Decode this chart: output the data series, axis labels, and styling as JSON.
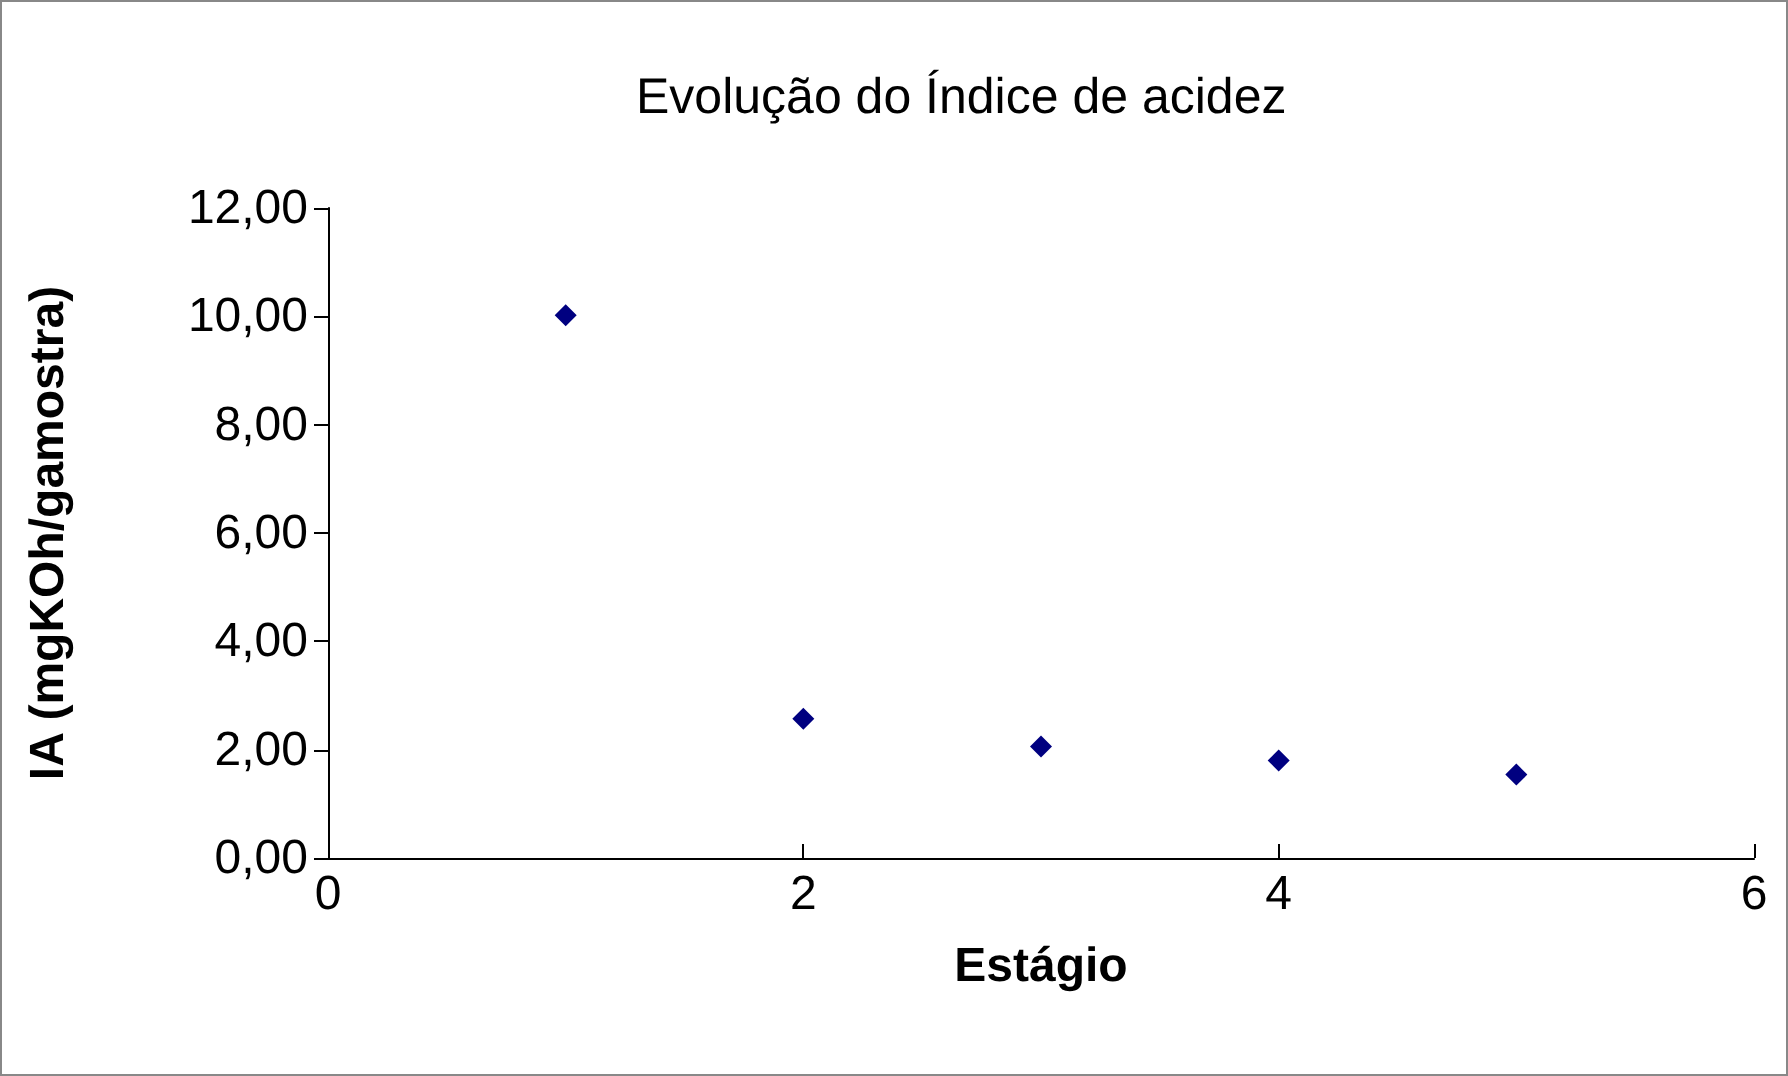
{
  "chart_data": {
    "type": "scatter",
    "title": "Evolução do Índice de acidez",
    "xlabel": "Estágio",
    "ylabel": "IA (mgKOh/gamostra)",
    "x": [
      1,
      2,
      3,
      4,
      5
    ],
    "series": [
      {
        "color": "#000080",
        "values": [
          10.02,
          2.57,
          2.06,
          1.8,
          1.54
        ]
      }
    ],
    "xlim": [
      0,
      6
    ],
    "xticks": [
      0,
      2,
      4,
      6
    ],
    "ylim": [
      0,
      12
    ],
    "yticks": [
      {
        "value": 0,
        "label": "0,00"
      },
      {
        "value": 2,
        "label": "2,00"
      },
      {
        "value": 4,
        "label": "4,00"
      },
      {
        "value": 6,
        "label": "6,00"
      },
      {
        "value": 8,
        "label": "8,00"
      },
      {
        "value": 10,
        "label": "10,00"
      },
      {
        "value": 12,
        "label": "12,00"
      }
    ],
    "grid": false,
    "marker": "diamond"
  }
}
